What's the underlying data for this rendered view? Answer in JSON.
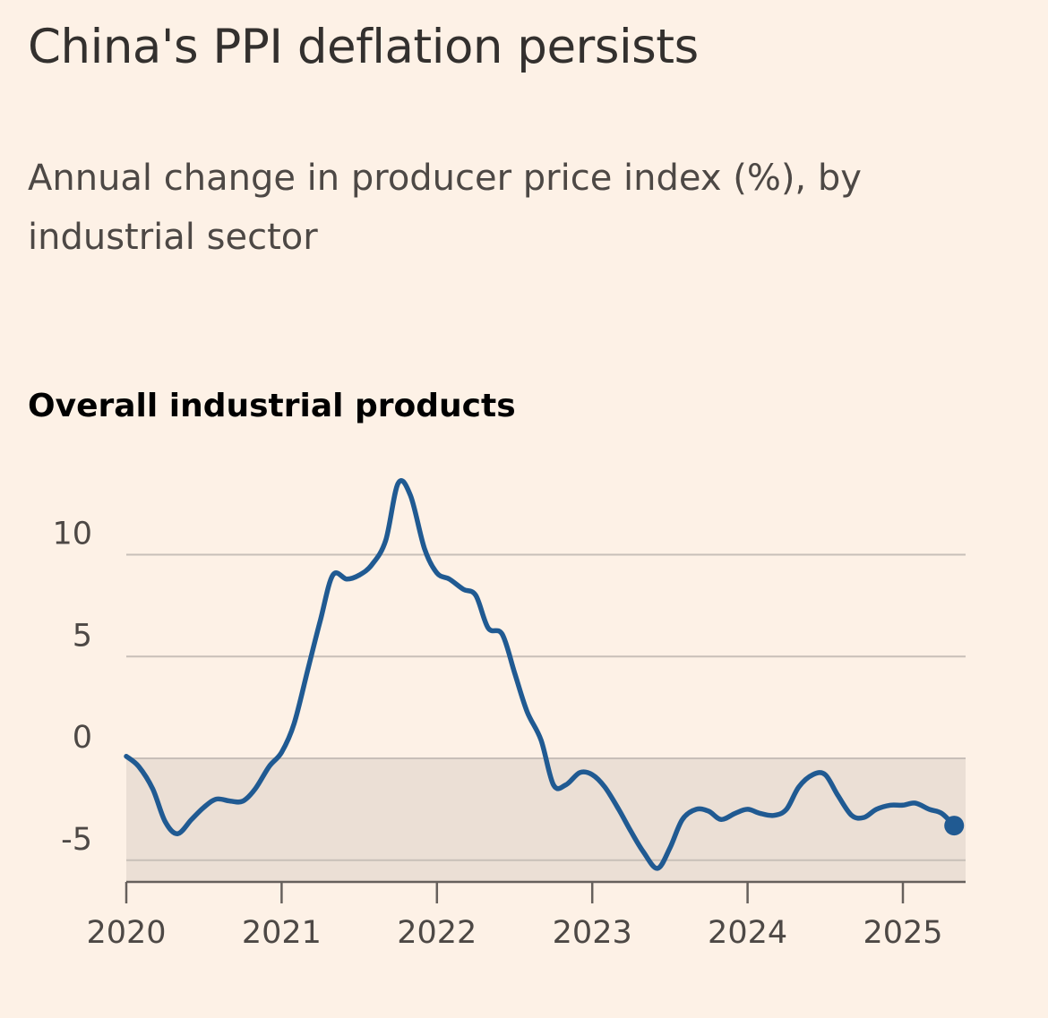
{
  "title": "China's PPI deflation persists",
  "subtitle": "Annual change in producer price index (%), by industrial sector",
  "colors": {
    "background": "#fdf1e6",
    "line": "#205a92",
    "negative_band": "#ebdfd5",
    "gridline": "#c8bfb8"
  },
  "chart_data": {
    "type": "line",
    "title": "Overall industrial products",
    "xlabel": "",
    "ylabel": "",
    "xlim": [
      2020,
      2025.35
    ],
    "ylim": [
      -6,
      14
    ],
    "grid": true,
    "shaded_below_zero": true,
    "x_ticks": [
      {
        "value": 2020,
        "label": "2020"
      },
      {
        "value": 2021,
        "label": "2021"
      },
      {
        "value": 2022,
        "label": "2022"
      },
      {
        "value": 2023,
        "label": "2023"
      },
      {
        "value": 2024,
        "label": "2024"
      },
      {
        "value": 2025,
        "label": "2025"
      }
    ],
    "y_ticks": [
      {
        "value": 10,
        "label": "10"
      },
      {
        "value": 5,
        "label": "5"
      },
      {
        "value": 0,
        "label": "0"
      },
      {
        "value": -5,
        "label": "-5"
      }
    ],
    "series": [
      {
        "name": "Overall industrial products",
        "end_marker": true,
        "x": [
          2020.0,
          2020.08,
          2020.17,
          2020.25,
          2020.33,
          2020.42,
          2020.5,
          2020.58,
          2020.67,
          2020.75,
          2020.83,
          2020.92,
          2021.0,
          2021.08,
          2021.17,
          2021.25,
          2021.33,
          2021.42,
          2021.5,
          2021.58,
          2021.67,
          2021.75,
          2021.83,
          2021.92,
          2022.0,
          2022.08,
          2022.17,
          2022.25,
          2022.33,
          2022.42,
          2022.5,
          2022.58,
          2022.67,
          2022.75,
          2022.83,
          2022.92,
          2023.0,
          2023.08,
          2023.17,
          2023.25,
          2023.33,
          2023.42,
          2023.5,
          2023.58,
          2023.67,
          2023.75,
          2023.83,
          2023.92,
          2024.0,
          2024.08,
          2024.17,
          2024.25,
          2024.33,
          2024.42,
          2024.5,
          2024.58,
          2024.67,
          2024.75,
          2024.83,
          2024.92,
          2025.0,
          2025.08,
          2025.17,
          2025.25,
          2025.33
        ],
        "values": [
          0.1,
          -0.4,
          -1.5,
          -3.1,
          -3.7,
          -3.0,
          -2.4,
          -2.0,
          -2.1,
          -2.1,
          -1.5,
          -0.4,
          0.3,
          1.7,
          4.4,
          6.8,
          9.0,
          8.8,
          9.0,
          9.5,
          10.7,
          13.5,
          12.9,
          10.3,
          9.1,
          8.8,
          8.3,
          8.0,
          6.4,
          6.1,
          4.2,
          2.3,
          0.9,
          -1.3,
          -1.3,
          -0.7,
          -0.8,
          -1.4,
          -2.5,
          -3.6,
          -4.6,
          -5.4,
          -4.4,
          -3.0,
          -2.5,
          -2.6,
          -3.0,
          -2.7,
          -2.5,
          -2.7,
          -2.8,
          -2.5,
          -1.4,
          -0.8,
          -0.8,
          -1.8,
          -2.8,
          -2.9,
          -2.5,
          -2.3,
          -2.3,
          -2.2,
          -2.5,
          -2.7,
          -3.3
        ]
      }
    ]
  }
}
